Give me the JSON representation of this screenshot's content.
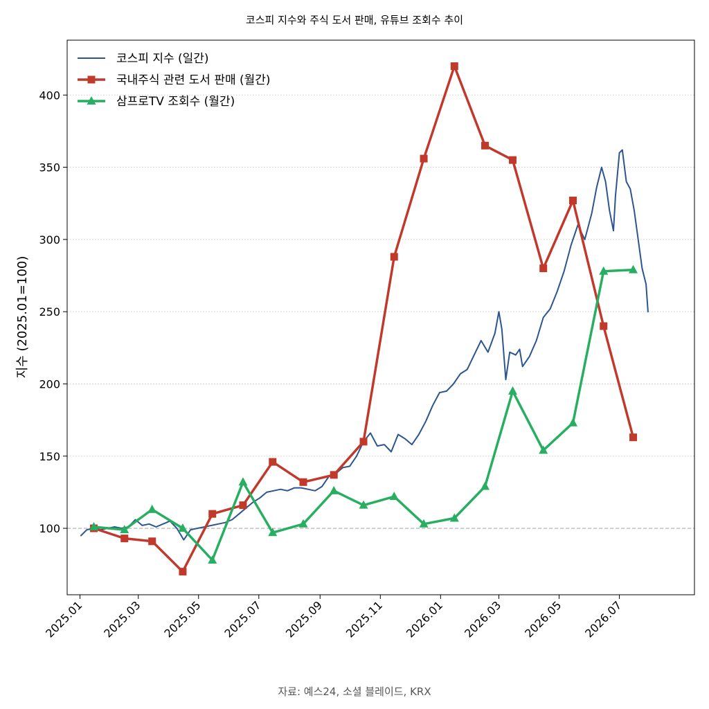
{
  "chart_data": {
    "type": "line",
    "title": "코스피 지수와 주식 도서 판매, 유튜브 조회수 추이",
    "ylabel": "지수 (2025.01=100)",
    "xlabel": "",
    "source": "자료: 예스24, 소셜 블레이드, KRX",
    "ylim": [
      54,
      438
    ],
    "y_ticks": [
      100,
      150,
      200,
      250,
      300,
      350,
      400
    ],
    "x_range": [
      "2024-12-19",
      "2026-09-15"
    ],
    "x_ticks": [
      "2025.01",
      "2025.03",
      "2025.05",
      "2025.07",
      "2025.09",
      "2025.11",
      "2026.01",
      "2026.03",
      "2026.05",
      "2026.07"
    ],
    "x_tick_dates": [
      "2025-01-01",
      "2025-03-01",
      "2025-05-01",
      "2025-07-01",
      "2025-09-01",
      "2025-11-01",
      "2026-01-01",
      "2026-03-01",
      "2026-05-01",
      "2026-07-01"
    ],
    "reference_line": 100,
    "grid": "horizontal dotted",
    "legend": "top-left",
    "series": [
      {
        "name": "코스피 지수 (일간)",
        "color": "#2b5590",
        "marker": "none",
        "x": [
          "2025-01-02",
          "2025-01-08",
          "2025-01-15",
          "2025-01-22",
          "2025-01-29",
          "2025-02-05",
          "2025-02-12",
          "2025-02-19",
          "2025-02-26",
          "2025-03-05",
          "2025-03-12",
          "2025-03-19",
          "2025-03-26",
          "2025-04-02",
          "2025-04-09",
          "2025-04-16",
          "2025-04-23",
          "2025-04-30",
          "2025-05-07",
          "2025-05-14",
          "2025-05-21",
          "2025-05-28",
          "2025-06-04",
          "2025-06-11",
          "2025-06-18",
          "2025-06-25",
          "2025-07-02",
          "2025-07-09",
          "2025-07-16",
          "2025-07-23",
          "2025-07-30",
          "2025-08-06",
          "2025-08-13",
          "2025-08-20",
          "2025-08-27",
          "2025-09-03",
          "2025-09-10",
          "2025-09-17",
          "2025-09-24",
          "2025-10-01",
          "2025-10-08",
          "2025-10-15",
          "2025-10-22",
          "2025-10-29",
          "2025-11-05",
          "2025-11-12",
          "2025-11-19",
          "2025-11-26",
          "2025-12-03",
          "2025-12-10",
          "2025-12-17",
          "2025-12-24",
          "2025-12-31",
          "2026-01-07",
          "2026-01-14",
          "2026-01-21",
          "2026-01-28",
          "2026-02-04",
          "2026-02-11",
          "2026-02-18",
          "2026-02-25",
          "2026-03-01",
          "2026-03-04",
          "2026-03-08",
          "2026-03-12",
          "2026-03-18",
          "2026-03-22",
          "2026-03-25",
          "2026-04-01",
          "2026-04-08",
          "2026-04-15",
          "2026-04-22",
          "2026-04-29",
          "2026-05-06",
          "2026-05-13",
          "2026-05-20",
          "2026-05-27",
          "2026-06-03",
          "2026-06-08",
          "2026-06-13",
          "2026-06-17",
          "2026-06-21",
          "2026-06-25",
          "2026-06-27",
          "2026-07-01",
          "2026-07-04",
          "2026-07-08",
          "2026-07-12",
          "2026-07-16",
          "2026-07-20",
          "2026-07-24",
          "2026-07-28",
          "2026-07-30"
        ],
        "values": [
          95,
          99,
          100,
          99,
          100,
          101,
          100,
          101,
          106,
          102,
          103,
          101,
          103,
          105,
          100,
          92,
          99,
          100,
          101,
          102,
          103,
          104,
          106,
          110,
          114,
          118,
          121,
          125,
          126,
          127,
          126,
          128,
          128,
          127,
          126,
          129,
          136,
          138,
          142,
          143,
          150,
          160,
          166,
          157,
          158,
          153,
          165,
          162,
          158,
          165,
          174,
          185,
          194,
          195,
          200,
          207,
          210,
          220,
          230,
          222,
          235,
          250,
          238,
          203,
          222,
          220,
          224,
          212,
          219,
          230,
          246,
          252,
          264,
          278,
          296,
          310,
          300,
          318,
          336,
          350,
          340,
          320,
          306,
          330,
          360,
          362,
          340,
          335,
          320,
          300,
          280,
          269,
          250
        ]
      },
      {
        "name": "국내주식 관련 도서 판매 (월간)",
        "color": "#c0392b",
        "marker": "square",
        "x": [
          "2025-01-15",
          "2025-02-15",
          "2025-03-15",
          "2025-04-15",
          "2025-05-15",
          "2025-06-15",
          "2025-07-15",
          "2025-08-15",
          "2025-09-15",
          "2025-10-15",
          "2025-11-15",
          "2025-12-15",
          "2026-01-15",
          "2026-02-15",
          "2026-03-15",
          "2026-04-15",
          "2026-05-15",
          "2026-06-15",
          "2026-07-15"
        ],
        "values": [
          100,
          93,
          91,
          70,
          110,
          116,
          146,
          132,
          137,
          160,
          288,
          356,
          420,
          365,
          355,
          280,
          327,
          240,
          163
        ]
      },
      {
        "name": "삼프로TV 조회수 (월간)",
        "color": "#27ae60",
        "marker": "triangle",
        "x": [
          "2025-01-15",
          "2025-02-15",
          "2025-03-15",
          "2025-04-15",
          "2025-05-15",
          "2025-06-15",
          "2025-07-15",
          "2025-08-15",
          "2025-09-15",
          "2025-10-15",
          "2025-11-15",
          "2025-12-15",
          "2026-01-15",
          "2026-02-15",
          "2026-03-15",
          "2026-04-15",
          "2026-05-15",
          "2026-06-15",
          "2026-07-15"
        ],
        "values": [
          101,
          99,
          113,
          100,
          78,
          132,
          97,
          103,
          126,
          116,
          122,
          103,
          107,
          129,
          195,
          154,
          173,
          278,
          279
        ]
      }
    ]
  }
}
